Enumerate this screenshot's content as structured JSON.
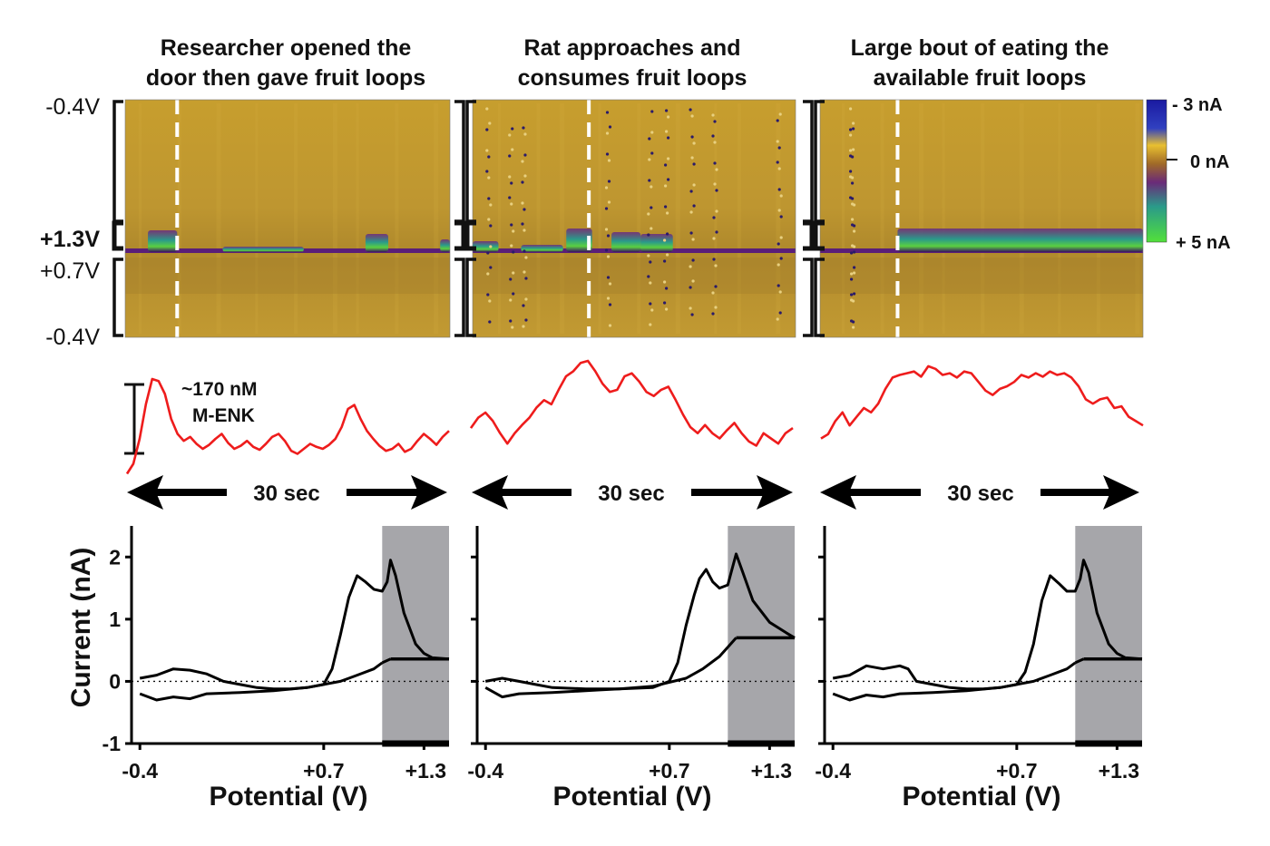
{
  "panels": [
    {
      "title_lines": [
        "Researcher opened the",
        "door then gave fruit loops"
      ],
      "duration_label": "30 sec",
      "trace": [
        0.05,
        0.15,
        0.4,
        0.75,
        1.0,
        0.98,
        0.85,
        0.6,
        0.45,
        0.38,
        0.42,
        0.35,
        0.3,
        0.34,
        0.4,
        0.45,
        0.36,
        0.3,
        0.33,
        0.38,
        0.32,
        0.29,
        0.35,
        0.42,
        0.45,
        0.38,
        0.28,
        0.25,
        0.3,
        0.35,
        0.32,
        0.3,
        0.34,
        0.4,
        0.52,
        0.7,
        0.74,
        0.6,
        0.48,
        0.4,
        0.33,
        0.28,
        0.3,
        0.35,
        0.27,
        0.3,
        0.38,
        0.45,
        0.4,
        0.34,
        0.42,
        0.48
      ],
      "event_marker_fraction": 0.16,
      "cv_anodic": [
        [
          -0.4,
          0.05
        ],
        [
          -0.3,
          0.1
        ],
        [
          -0.2,
          0.2
        ],
        [
          -0.1,
          0.18
        ],
        [
          0.0,
          0.12
        ],
        [
          0.1,
          0.0
        ],
        [
          0.2,
          -0.05
        ],
        [
          0.3,
          -0.1
        ],
        [
          0.4,
          -0.12
        ],
        [
          0.5,
          -0.12
        ],
        [
          0.6,
          -0.1
        ],
        [
          0.7,
          -0.05
        ],
        [
          0.75,
          0.2
        ],
        [
          0.8,
          0.75
        ],
        [
          0.85,
          1.35
        ],
        [
          0.9,
          1.7
        ],
        [
          0.95,
          1.6
        ],
        [
          1.0,
          1.48
        ],
        [
          1.05,
          1.45
        ],
        [
          1.08,
          1.6
        ],
        [
          1.1,
          1.95
        ],
        [
          1.13,
          1.7
        ],
        [
          1.18,
          1.1
        ],
        [
          1.25,
          0.6
        ],
        [
          1.3,
          0.45
        ],
        [
          1.35,
          0.38
        ],
        [
          1.45,
          0.36
        ]
      ],
      "cv_cathodic": [
        [
          -0.4,
          -0.2
        ],
        [
          -0.3,
          -0.3
        ],
        [
          -0.2,
          -0.25
        ],
        [
          -0.1,
          -0.28
        ],
        [
          0.0,
          -0.2
        ],
        [
          0.2,
          -0.18
        ],
        [
          0.4,
          -0.15
        ],
        [
          0.6,
          -0.1
        ],
        [
          0.8,
          0.0
        ],
        [
          0.9,
          0.1
        ],
        [
          1.0,
          0.2
        ],
        [
          1.05,
          0.3
        ]
      ],
      "cv_hold_value": 0.36
    },
    {
      "title_lines": [
        "Rat approaches and",
        "consumes fruit loops"
      ],
      "duration_label": "30 sec",
      "trace": [
        0.35,
        0.45,
        0.5,
        0.42,
        0.3,
        0.2,
        0.3,
        0.38,
        0.45,
        0.55,
        0.62,
        0.58,
        0.72,
        0.85,
        0.9,
        0.98,
        1.0,
        0.9,
        0.78,
        0.7,
        0.72,
        0.85,
        0.88,
        0.8,
        0.7,
        0.66,
        0.72,
        0.75,
        0.62,
        0.48,
        0.36,
        0.3,
        0.38,
        0.3,
        0.25,
        0.33,
        0.4,
        0.3,
        0.22,
        0.18,
        0.3,
        0.25,
        0.2,
        0.3,
        0.35
      ],
      "event_marker_fraction": 0.36,
      "cv_anodic": [
        [
          -0.4,
          0.0
        ],
        [
          -0.3,
          0.05
        ],
        [
          -0.2,
          0.0
        ],
        [
          -0.1,
          -0.05
        ],
        [
          0.0,
          -0.1
        ],
        [
          0.2,
          -0.12
        ],
        [
          0.4,
          -0.12
        ],
        [
          0.6,
          -0.1
        ],
        [
          0.7,
          0.0
        ],
        [
          0.75,
          0.3
        ],
        [
          0.8,
          0.9
        ],
        [
          0.85,
          1.4
        ],
        [
          0.88,
          1.65
        ],
        [
          0.92,
          1.8
        ],
        [
          0.96,
          1.6
        ],
        [
          1.0,
          1.5
        ],
        [
          1.05,
          1.55
        ],
        [
          1.08,
          1.85
        ],
        [
          1.1,
          2.05
        ],
        [
          1.14,
          1.75
        ],
        [
          1.2,
          1.3
        ],
        [
          1.3,
          0.95
        ],
        [
          1.4,
          0.78
        ],
        [
          1.45,
          0.7
        ]
      ],
      "cv_cathodic": [
        [
          -0.4,
          -0.1
        ],
        [
          -0.3,
          -0.25
        ],
        [
          -0.2,
          -0.2
        ],
        [
          0.0,
          -0.18
        ],
        [
          0.2,
          -0.15
        ],
        [
          0.4,
          -0.12
        ],
        [
          0.6,
          -0.08
        ],
        [
          0.8,
          0.05
        ],
        [
          0.9,
          0.2
        ],
        [
          1.0,
          0.4
        ],
        [
          1.05,
          0.55
        ]
      ],
      "cv_hold_value": 0.7
    },
    {
      "title_lines": [
        "Large bout of eating the",
        "available fruit loops"
      ],
      "duration_label": "30 sec",
      "trace": [
        0.15,
        0.2,
        0.35,
        0.45,
        0.3,
        0.4,
        0.5,
        0.45,
        0.55,
        0.72,
        0.85,
        0.88,
        0.9,
        0.92,
        0.86,
        0.98,
        0.95,
        0.88,
        0.9,
        0.85,
        0.92,
        0.9,
        0.8,
        0.7,
        0.65,
        0.72,
        0.75,
        0.8,
        0.88,
        0.85,
        0.9,
        0.86,
        0.92,
        0.88,
        0.9,
        0.85,
        0.75,
        0.6,
        0.55,
        0.6,
        0.62,
        0.5,
        0.52,
        0.4,
        0.35,
        0.3
      ],
      "event_marker_fraction": 0.24,
      "cv_anodic": [
        [
          -0.4,
          0.05
        ],
        [
          -0.3,
          0.1
        ],
        [
          -0.2,
          0.25
        ],
        [
          -0.1,
          0.2
        ],
        [
          0.0,
          0.25
        ],
        [
          0.05,
          0.2
        ],
        [
          0.1,
          0.0
        ],
        [
          0.2,
          -0.05
        ],
        [
          0.3,
          -0.1
        ],
        [
          0.4,
          -0.12
        ],
        [
          0.5,
          -0.12
        ],
        [
          0.6,
          -0.1
        ],
        [
          0.7,
          -0.05
        ],
        [
          0.75,
          0.15
        ],
        [
          0.8,
          0.6
        ],
        [
          0.85,
          1.3
        ],
        [
          0.9,
          1.7
        ],
        [
          0.95,
          1.58
        ],
        [
          1.0,
          1.45
        ],
        [
          1.05,
          1.45
        ],
        [
          1.08,
          1.65
        ],
        [
          1.1,
          1.95
        ],
        [
          1.13,
          1.75
        ],
        [
          1.18,
          1.1
        ],
        [
          1.25,
          0.6
        ],
        [
          1.3,
          0.45
        ],
        [
          1.35,
          0.38
        ],
        [
          1.45,
          0.36
        ]
      ],
      "cv_cathodic": [
        [
          -0.4,
          -0.2
        ],
        [
          -0.3,
          -0.3
        ],
        [
          -0.2,
          -0.22
        ],
        [
          -0.1,
          -0.25
        ],
        [
          0.0,
          -0.2
        ],
        [
          0.2,
          -0.18
        ],
        [
          0.4,
          -0.15
        ],
        [
          0.6,
          -0.1
        ],
        [
          0.8,
          0.0
        ],
        [
          0.9,
          0.1
        ],
        [
          1.0,
          0.2
        ],
        [
          1.05,
          0.3
        ]
      ],
      "cv_hold_value": 0.36
    }
  ],
  "voltage_labels": {
    "top": "-0.4V",
    "peak": "+1.3V",
    "mid": "+0.7V",
    "bottom": "-0.4V"
  },
  "colorbar": {
    "top": "- 3 nA",
    "mid": "0 nA",
    "bottom": "+ 5 nA"
  },
  "concentration_scale": {
    "line1": "~170 nM",
    "line2": "M-ENK"
  },
  "chart_data": {
    "type": "line",
    "xlabel": "Potential (V)",
    "ylabel": "Current (nA)",
    "ylim": [
      -1,
      2.5
    ],
    "yticks": [
      "-1",
      "0",
      "1",
      "2"
    ],
    "xticks": [
      "-0.4",
      "+0.7",
      "+1.3"
    ],
    "xtick_values": [
      -0.4,
      0.7,
      1.3
    ],
    "x_range": [
      -0.45,
      1.45
    ],
    "shaded_region_start": 1.05,
    "zero_line": "dotted",
    "series": [
      "panel-1 cyclic voltammogram",
      "panel-2 cyclic voltammogram",
      "panel-3 cyclic voltammogram"
    ]
  },
  "colors": {
    "trace": "#ee1c1c",
    "shade": "#a6a6aa",
    "colorplot_base": "#c8a030",
    "colorplot_dark": "#a88228",
    "band_purple": "#5a1e78",
    "band_teal": "#2a9a8a",
    "band_green": "#52d03a"
  }
}
